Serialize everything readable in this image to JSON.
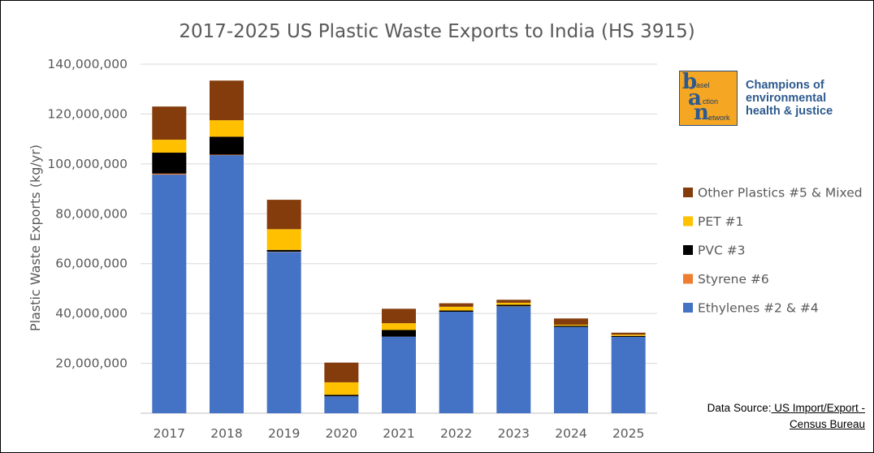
{
  "chart_data": {
    "type": "bar",
    "stacked": true,
    "title": "2017-2025 US Plastic Waste Exports to India (HS 3915)",
    "ylabel": "Plastic Waste Exports (kg/yr)",
    "xlabel": "",
    "ylim": [
      0,
      140000000
    ],
    "yticks": [
      "",
      "20,000,000",
      "40,000,000",
      "60,000,000",
      "80,000,000",
      "100,000,000",
      "120,000,000",
      "140,000,000"
    ],
    "ytick_values": [
      0,
      20000000,
      40000000,
      60000000,
      80000000,
      100000000,
      120000000,
      140000000
    ],
    "grid": true,
    "legend_position": "right",
    "categories": [
      "2017",
      "2018",
      "2019",
      "2020",
      "2021",
      "2022",
      "2023",
      "2024",
      "2025"
    ],
    "series": [
      {
        "name": "Ethylenes #2 & #4",
        "color": "#4472c4",
        "values": [
          95700000,
          103500000,
          64700000,
          6800000,
          30700000,
          40700000,
          42800000,
          34600000,
          30600000
        ]
      },
      {
        "name": "Styrene #6",
        "color": "#ed7d31",
        "values": [
          400000,
          200000,
          100000,
          0,
          0,
          0,
          100000,
          0,
          0
        ]
      },
      {
        "name": "PVC #3",
        "color": "#000000",
        "values": [
          8400000,
          7200000,
          700000,
          600000,
          2700000,
          500000,
          600000,
          500000,
          400000
        ]
      },
      {
        "name": "PET #1",
        "color": "#ffc000",
        "values": [
          5200000,
          6600000,
          8300000,
          5000000,
          2700000,
          1500000,
          800000,
          400000,
          500000
        ]
      },
      {
        "name": "Other Plastics #5 & Mixed",
        "color": "#843c0c",
        "values": [
          13300000,
          15900000,
          11800000,
          7900000,
          5800000,
          1400000,
          1200000,
          2500000,
          800000
        ]
      }
    ],
    "legend_order": [
      "Other Plastics #5 & Mixed",
      "PET #1",
      "PVC #3",
      "Styrene #6",
      "Ethylenes #2 & #4"
    ]
  },
  "logo": {
    "big_letters": [
      "b",
      "a",
      "n"
    ],
    "small_words": [
      "asel",
      "ction",
      "etwork"
    ],
    "tagline_lines": [
      "Champions of",
      "environmental",
      "health & justice"
    ]
  },
  "source": {
    "prefix": "Data Source:",
    "link_line1": " US Import/Export -",
    "link_line2": "Census Bureau"
  },
  "colors": {
    "axis_text": "#595959",
    "grid": "#d9d9d9",
    "logo_background": "#f5a623",
    "logo_text": "#2d5a8e"
  }
}
